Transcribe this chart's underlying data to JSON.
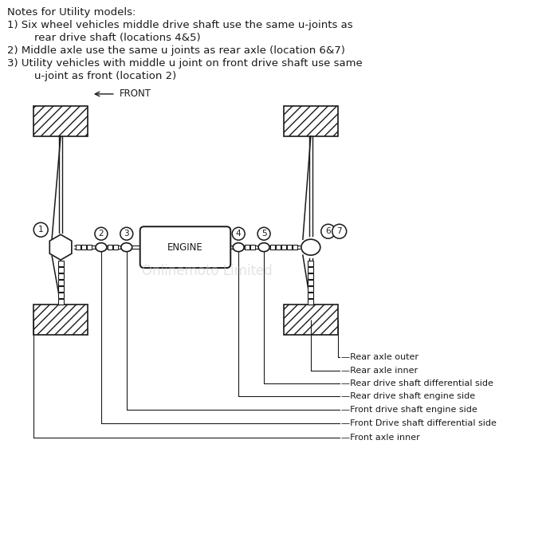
{
  "bg_color": "#ffffff",
  "line_color": "#1a1a1a",
  "text_color": "#1a1a1a",
  "watermark_color": "#c8c8c8",
  "notes": [
    "Notes for Utility models:",
    "1) Six wheel vehicles middle drive shaft use the same u-joints as",
    "        rear drive shaft (locations 4&5)",
    "2) Middle axle use the same u joints as rear axle (location 6&7)",
    "3) Utility vehicles with middle u joint on front drive shaft use same",
    "        u-joint as front (location 2)"
  ],
  "labels": [
    "Rear axle outer",
    "Rear axle inner",
    "Rear drive shaft differential side",
    "Rear drive shaft engine side",
    "Front drive shaft engine side",
    "Front Drive shaft differential side",
    "Front axle inner"
  ],
  "front_label": "FRONT",
  "engine_label": "ENGINE",
  "watermark": "Onlinemoto Limited"
}
